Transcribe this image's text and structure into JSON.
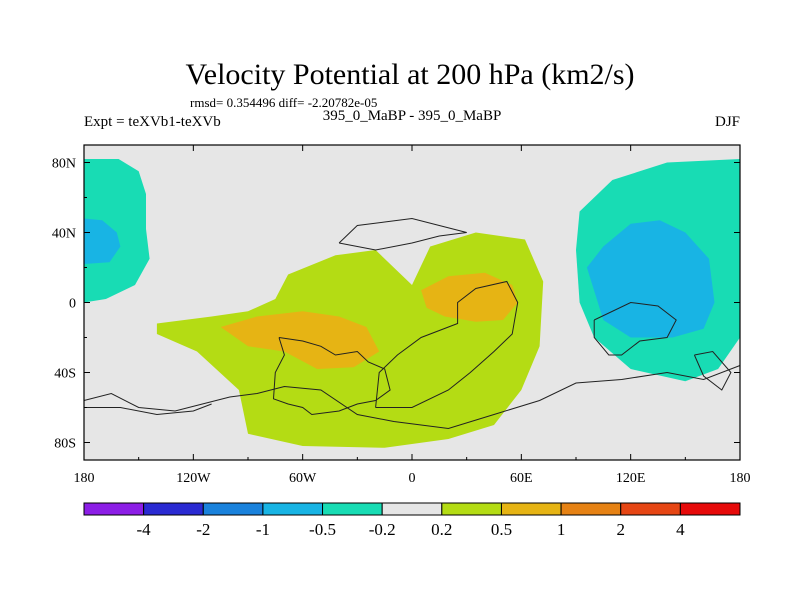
{
  "chart_data": {
    "type": "map",
    "title": "Velocity Potential at 200 hPa (km2/s)",
    "stats": "rmsd= 0.354496 diff= -2.20782e-05",
    "left_label": "Expt = teXVb1-teXVb",
    "center_label": "395_0_MaBP - 395_0_MaBP",
    "right_label": "DJF",
    "xlim": [
      -180,
      180
    ],
    "ylim": [
      -90,
      90
    ],
    "x_ticks": [
      {
        "value": -180,
        "label": "180"
      },
      {
        "value": -120,
        "label": "120W"
      },
      {
        "value": -60,
        "label": "60W"
      },
      {
        "value": 0,
        "label": "0"
      },
      {
        "value": 60,
        "label": "60E"
      },
      {
        "value": 120,
        "label": "120E"
      },
      {
        "value": 180,
        "label": "180"
      }
    ],
    "y_ticks": [
      {
        "value": 80,
        "label": "80N"
      },
      {
        "value": 40,
        "label": "40N"
      },
      {
        "value": 0,
        "label": "0"
      },
      {
        "value": -40,
        "label": "40S"
      },
      {
        "value": -80,
        "label": "80S"
      }
    ],
    "colorbar": {
      "levels": [
        "-4",
        "-2",
        "-1",
        "-0.5",
        "-0.2",
        "0.2",
        "0.5",
        "1",
        "2",
        "4"
      ],
      "colors": [
        "#8c1ee6",
        "#2a2ad2",
        "#1a82dc",
        "#18b4e4",
        "#18dcb4",
        "#e6e6e6",
        "#b4dc14",
        "#e6b414",
        "#e68214",
        "#e64614",
        "#e60a0a"
      ]
    },
    "background_color": "#e6e6e6",
    "regions": [
      {
        "name": "west-pacific-north",
        "level": "-0.5..-0.2",
        "color": "#18dcb4",
        "lonlat": [
          [
            -180,
            82
          ],
          [
            -161,
            82
          ],
          [
            -150,
            75
          ],
          [
            -146,
            62
          ],
          [
            -146,
            42
          ],
          [
            -144,
            25
          ],
          [
            -152,
            10
          ],
          [
            -168,
            2
          ],
          [
            -180,
            0
          ]
        ]
      },
      {
        "name": "west-pacific-north-core",
        "level": "-1..-0.5",
        "color": "#18b4e4",
        "lonlat": [
          [
            -180,
            48
          ],
          [
            -170,
            47
          ],
          [
            -162,
            40
          ],
          [
            -160,
            32
          ],
          [
            -166,
            23
          ],
          [
            -180,
            22
          ]
        ]
      },
      {
        "name": "atlantic-africa-positive",
        "level": "0.2..0.5",
        "color": "#b4dc14",
        "lonlat": [
          [
            -140,
            -12
          ],
          [
            -110,
            -8
          ],
          [
            -90,
            -5
          ],
          [
            -75,
            2
          ],
          [
            -68,
            16
          ],
          [
            -42,
            27
          ],
          [
            -20,
            30
          ],
          [
            0,
            10
          ],
          [
            10,
            32
          ],
          [
            35,
            40
          ],
          [
            62,
            36
          ],
          [
            72,
            12
          ],
          [
            70,
            -25
          ],
          [
            60,
            -50
          ],
          [
            45,
            -70
          ],
          [
            20,
            -78
          ],
          [
            -15,
            -83
          ],
          [
            -60,
            -82
          ],
          [
            -90,
            -75
          ],
          [
            -95,
            -50
          ],
          [
            -118,
            -28
          ],
          [
            -140,
            -18
          ]
        ]
      },
      {
        "name": "south-america-core",
        "level": "0.5..1",
        "color": "#e6b414",
        "lonlat": [
          [
            -105,
            -14
          ],
          [
            -85,
            -8
          ],
          [
            -60,
            -5
          ],
          [
            -40,
            -8
          ],
          [
            -25,
            -14
          ],
          [
            -18,
            -28
          ],
          [
            -32,
            -37
          ],
          [
            -52,
            -38
          ],
          [
            -70,
            -28
          ],
          [
            -90,
            -25
          ]
        ]
      },
      {
        "name": "africa-core",
        "level": "0.5..1",
        "color": "#e6b414",
        "lonlat": [
          [
            5,
            7
          ],
          [
            20,
            15
          ],
          [
            40,
            17
          ],
          [
            55,
            10
          ],
          [
            58,
            0
          ],
          [
            50,
            -10
          ],
          [
            35,
            -11
          ],
          [
            18,
            -8
          ],
          [
            8,
            -3
          ]
        ]
      },
      {
        "name": "east-pacific-negative",
        "level": "-0.5..-0.2",
        "color": "#18dcb4",
        "lonlat": [
          [
            180,
            82
          ],
          [
            140,
            80
          ],
          [
            110,
            70
          ],
          [
            92,
            52
          ],
          [
            90,
            30
          ],
          [
            92,
            0
          ],
          [
            100,
            -20
          ],
          [
            120,
            -38
          ],
          [
            150,
            -45
          ],
          [
            168,
            -38
          ],
          [
            180,
            -20
          ]
        ]
      },
      {
        "name": "east-pacific-negative-core",
        "level": "-1..-0.5",
        "color": "#18b4e4",
        "lonlat": [
          [
            96,
            20
          ],
          [
            105,
            32
          ],
          [
            120,
            45
          ],
          [
            136,
            47
          ],
          [
            150,
            40
          ],
          [
            163,
            25
          ],
          [
            166,
            0
          ],
          [
            160,
            -15
          ],
          [
            143,
            -20
          ],
          [
            120,
            -20
          ],
          [
            105,
            -10
          ]
        ]
      }
    ],
    "coastlines": [
      [
        [
          -73,
          -20
        ],
        [
          -60,
          -22
        ],
        [
          -50,
          -25
        ],
        [
          -42,
          -30
        ],
        [
          -30,
          -28
        ],
        [
          -24,
          -34
        ],
        [
          -15,
          -38
        ],
        [
          -12,
          -50
        ],
        [
          -20,
          -56
        ],
        [
          -30,
          -58
        ],
        [
          -40,
          -62
        ],
        [
          -55,
          -64
        ],
        [
          -60,
          -60
        ],
        [
          -68,
          -58
        ],
        [
          -76,
          -55
        ],
        [
          -75,
          -40
        ],
        [
          -70,
          -30
        ],
        [
          -73,
          -20
        ]
      ],
      [
        [
          -20,
          -60
        ],
        [
          -18,
          -40
        ],
        [
          -8,
          -30
        ],
        [
          5,
          -20
        ],
        [
          25,
          -12
        ],
        [
          25,
          0
        ],
        [
          35,
          8
        ],
        [
          52,
          12
        ],
        [
          58,
          0
        ],
        [
          55,
          -18
        ],
        [
          45,
          -28
        ],
        [
          32,
          -40
        ],
        [
          20,
          -50
        ],
        [
          0,
          -60
        ],
        [
          -20,
          -60
        ]
      ],
      [
        [
          -180,
          -56
        ],
        [
          -165,
          -52
        ],
        [
          -150,
          -60
        ],
        [
          -130,
          -62
        ],
        [
          -115,
          -58
        ],
        [
          -100,
          -54
        ],
        [
          -85,
          -52
        ],
        [
          -70,
          -48
        ],
        [
          -50,
          -50
        ],
        [
          -30,
          -64
        ],
        [
          -10,
          -68
        ],
        [
          20,
          -72
        ],
        [
          45,
          -64
        ],
        [
          70,
          -56
        ],
        [
          90,
          -46
        ],
        [
          115,
          -44
        ],
        [
          140,
          -40
        ],
        [
          160,
          -44
        ],
        [
          180,
          -36
        ]
      ],
      [
        [
          -180,
          -60
        ],
        [
          -160,
          -60
        ],
        [
          -140,
          -64
        ],
        [
          -120,
          -62
        ],
        [
          -110,
          -58
        ]
      ],
      [
        [
          -40,
          34
        ],
        [
          -30,
          44
        ],
        [
          -15,
          46
        ],
        [
          0,
          48
        ],
        [
          15,
          44
        ],
        [
          30,
          40
        ],
        [
          15,
          38
        ],
        [
          0,
          34
        ],
        [
          -20,
          30
        ],
        [
          -40,
          34
        ]
      ],
      [
        [
          100,
          -10
        ],
        [
          120,
          0
        ],
        [
          135,
          -2
        ],
        [
          145,
          -10
        ],
        [
          140,
          -20
        ],
        [
          125,
          -22
        ],
        [
          115,
          -30
        ],
        [
          108,
          -30
        ],
        [
          100,
          -20
        ],
        [
          100,
          -10
        ]
      ],
      [
        [
          155,
          -30
        ],
        [
          165,
          -28
        ],
        [
          175,
          -40
        ],
        [
          170,
          -50
        ],
        [
          160,
          -42
        ],
        [
          155,
          -30
        ]
      ]
    ]
  }
}
